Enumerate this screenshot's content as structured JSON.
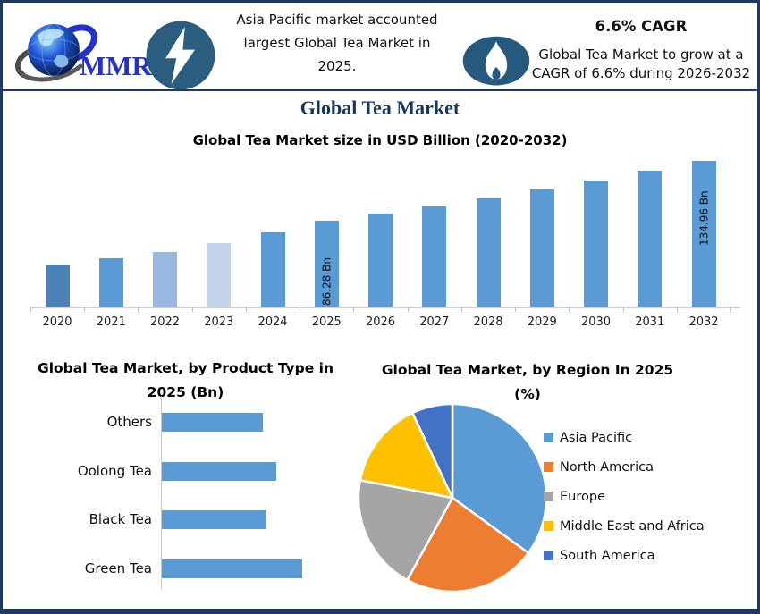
{
  "brand": {
    "logo_text": "MMR"
  },
  "header": {
    "note_line1": "Asia Pacific market accounted",
    "note_line2": "largest Global Tea Market in",
    "note_line3": "2025.",
    "cagr_title": "6.6% CAGR",
    "cagr_line1": "Global Tea Market to grow at a",
    "cagr_line2": "CAGR of 6.6% during 2026-2032"
  },
  "page_title": "Global Tea Market",
  "colors": {
    "accent_navy": "#1f3864",
    "bar_blue": "#5b9bd5",
    "icon_circle_blue": "#2b5d7f"
  },
  "chart_data": [
    {
      "type": "bar",
      "title": "Global Tea Market size in USD Billion (2020-2032)",
      "categories": [
        "2020",
        "2021",
        "2022",
        "2023",
        "2024",
        "2025",
        "2026",
        "2027",
        "2028",
        "2029",
        "2030",
        "2031",
        "2032"
      ],
      "values": [
        50.7,
        55.8,
        60.9,
        68.1,
        76.8,
        86.28,
        91.97,
        98.04,
        104.51,
        111.41,
        118.76,
        126.6,
        134.96
      ],
      "value_labels": [
        "",
        "",
        "",
        "",
        "",
        "86.28 Bn",
        "",
        "",
        "",
        "",
        "",
        "",
        "134.96 Bn"
      ],
      "bar_colors": [
        "#4d82b8",
        "#5b9bd5",
        "#9ab7e0",
        "#c3d3ec",
        "#5b9bd5",
        "#5b9bd5",
        "#5b9bd5",
        "#5b9bd5",
        "#5b9bd5",
        "#5b9bd5",
        "#5b9bd5",
        "#5b9bd5",
        "#5b9bd5"
      ],
      "ylabel": "USD Billion",
      "ylim": [
        16.5,
        140
      ],
      "grid": false,
      "legend": "none"
    },
    {
      "type": "bar",
      "orientation": "horizontal",
      "title": "Global Tea Market, by Product Type in 2025 (Bn)",
      "title_line1": "Global Tea Market, by Product Type in",
      "title_line2": "2025 (Bn)",
      "categories": [
        "Others",
        "Oolong Tea",
        "Black Tea",
        "Green Tea"
      ],
      "values": [
        18.9,
        21.4,
        19.6,
        26.3
      ],
      "bar_color": "#5b9bd5",
      "xlim": [
        0,
        30
      ],
      "grid": false,
      "legend": "none"
    },
    {
      "type": "pie",
      "title": "Global Tea Market, by Region In 2025 (%)",
      "title_line1": "Global Tea Market, by Region In 2025",
      "title_line2": "(%)",
      "labels": [
        "Asia Pacific",
        "North America",
        "Europe",
        "Middle East and Africa",
        "South America"
      ],
      "values": [
        35,
        23,
        20,
        15,
        7
      ],
      "colors": [
        "#5b9bd5",
        "#ed7d31",
        "#a5a5a5",
        "#ffc000",
        "#4472c4"
      ],
      "legend_position": "right",
      "start_angle_deg": 0,
      "direction": "clockwise"
    }
  ]
}
